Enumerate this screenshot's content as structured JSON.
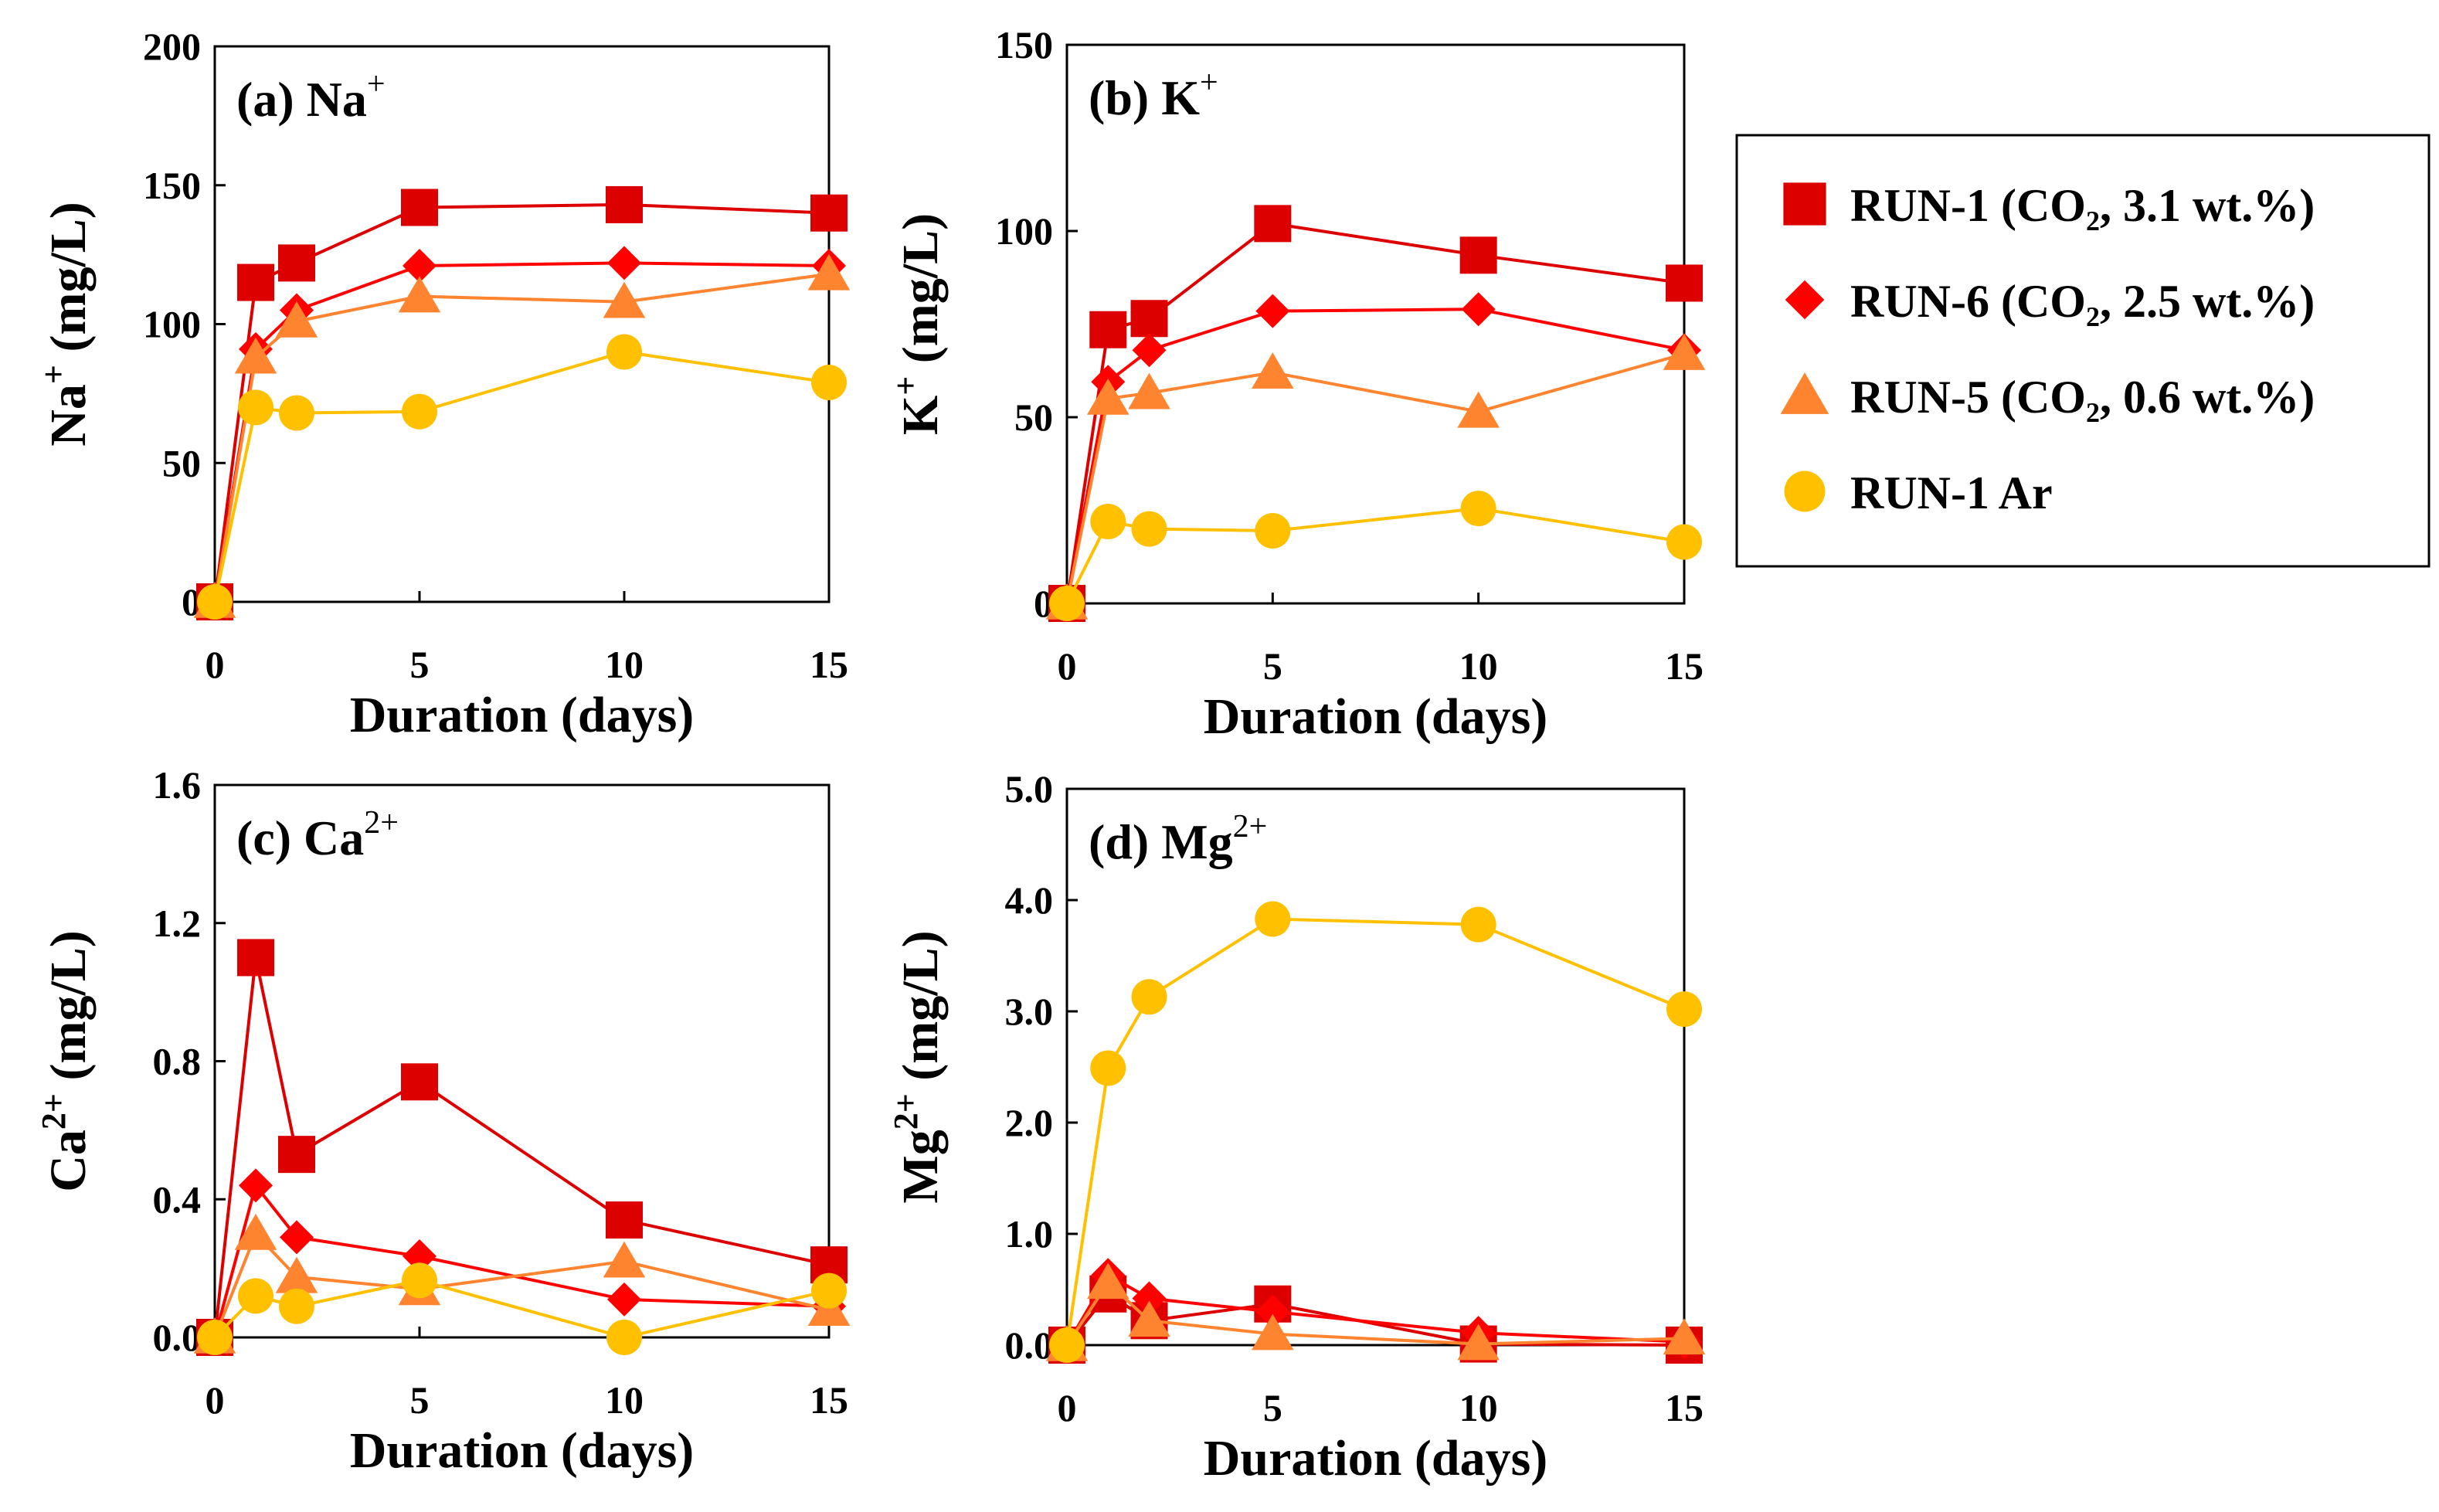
{
  "colors": {
    "RUN-1": "#DD0000",
    "RUN-6": "#FF0000",
    "RUN-5": "#FF8430",
    "RUN-1 Ar": "#FFC000"
  },
  "legend": {
    "position": "right",
    "entries": [
      {
        "name": "RUN-1 (CO₂, 3.1 wt.%)",
        "marker": "square",
        "series": "RUN-1"
      },
      {
        "name": "RUN-6 (CO₂, 2.5 wt.%)",
        "marker": "diamond",
        "series": "RUN-6"
      },
      {
        "name": "RUN-5 (CO₂, 0.6 wt.%)",
        "marker": "triangle",
        "series": "RUN-5"
      },
      {
        "name": "RUN-1 Ar",
        "marker": "circle",
        "series": "RUN-1 Ar"
      }
    ]
  },
  "chart_data": [
    {
      "type": "line",
      "panel": "a",
      "title": "(a) Na",
      "title_sup": "+",
      "ylabel": "Na",
      "ylabel_sup": "+",
      "ylabel_unit": " (mg/L)",
      "xlabel": "Duration (days)",
      "x": [
        0,
        1,
        2,
        5,
        10,
        15
      ],
      "xlim": [
        0,
        15
      ],
      "xticks": [
        "0",
        "5",
        "10",
        "15"
      ],
      "xtick_values": [
        0,
        5,
        10,
        15
      ],
      "ylim": [
        0,
        200
      ],
      "yticks": [
        "0",
        "50",
        "100",
        "150",
        "200"
      ],
      "ytick_values": [
        0,
        50,
        100,
        150,
        200
      ],
      "series": [
        {
          "name": "RUN-1",
          "marker": "square",
          "values": [
            0,
            115,
            122,
            142,
            143,
            140
          ]
        },
        {
          "name": "RUN-6",
          "marker": "diamond",
          "values": [
            0,
            91,
            105,
            121,
            122,
            121
          ]
        },
        {
          "name": "RUN-5",
          "marker": "triangle",
          "values": [
            0,
            88,
            101,
            110,
            108,
            118
          ]
        },
        {
          "name": "RUN-1 Ar",
          "marker": "circle",
          "values": [
            0,
            70,
            68,
            68.5,
            90,
            79
          ]
        }
      ]
    },
    {
      "type": "line",
      "panel": "b",
      "title": "(b) K",
      "title_sup": "+",
      "ylabel": "K",
      "ylabel_sup": "+",
      "ylabel_unit": " (mg/L)",
      "xlabel": "Duration (days)",
      "x": [
        0,
        1,
        2,
        5,
        10,
        15
      ],
      "xlim": [
        0,
        15
      ],
      "xticks": [
        "0",
        "5",
        "10",
        "15"
      ],
      "xtick_values": [
        0,
        5,
        10,
        15
      ],
      "ylim": [
        0,
        150
      ],
      "yticks": [
        "0",
        "50",
        "100",
        "150"
      ],
      "ytick_values": [
        0,
        50,
        100,
        150
      ],
      "series": [
        {
          "name": "RUN-1",
          "marker": "square",
          "values": [
            0,
            73.5,
            76.5,
            102,
            93.5,
            86
          ]
        },
        {
          "name": "RUN-6",
          "marker": "diamond",
          "values": [
            0,
            59.5,
            68,
            78.5,
            79,
            68
          ]
        },
        {
          "name": "RUN-5",
          "marker": "triangle",
          "values": [
            0,
            55,
            56.5,
            62,
            51.5,
            67
          ]
        },
        {
          "name": "RUN-1 Ar",
          "marker": "circle",
          "values": [
            0,
            22,
            20,
            19.5,
            25.5,
            16.5
          ]
        }
      ]
    },
    {
      "type": "line",
      "panel": "c",
      "title": "(c) Ca",
      "title_sup": "2+",
      "ylabel": "Ca",
      "ylabel_sup": "2+",
      "ylabel_unit": " (mg/L)",
      "xlabel": "Duration (days)",
      "x": [
        0,
        1,
        2,
        5,
        10,
        15
      ],
      "xlim": [
        0,
        15
      ],
      "xticks": [
        "0",
        "5",
        "10",
        "15"
      ],
      "xtick_values": [
        0,
        5,
        10,
        15
      ],
      "ylim": [
        0,
        1.6
      ],
      "yticks": [
        "0.0",
        "0.4",
        "0.8",
        "1.2",
        "1.6"
      ],
      "ytick_values": [
        0,
        0.4,
        0.8,
        1.2,
        1.6
      ],
      "series": [
        {
          "name": "RUN-1",
          "marker": "square",
          "values": [
            0,
            1.1,
            0.53,
            0.74,
            0.34,
            0.21
          ]
        },
        {
          "name": "RUN-6",
          "marker": "diamond",
          "values": [
            0,
            0.44,
            0.29,
            0.235,
            0.11,
            0.09
          ]
        },
        {
          "name": "RUN-5",
          "marker": "triangle",
          "values": [
            0,
            0.3,
            0.175,
            0.14,
            0.22,
            0.08
          ]
        },
        {
          "name": "RUN-1 Ar",
          "marker": "circle",
          "values": [
            0,
            0.12,
            0.09,
            0.165,
            0,
            0.135
          ]
        }
      ]
    },
    {
      "type": "line",
      "panel": "d",
      "title": "(d) Mg",
      "title_sup": "2+",
      "ylabel": "Mg",
      "ylabel_sup": "2+",
      "ylabel_unit": " (mg/L)",
      "xlabel": "Duration (days)",
      "x": [
        0,
        1,
        2,
        5,
        10,
        15
      ],
      "xlim": [
        0,
        15
      ],
      "xticks": [
        "0",
        "5",
        "10",
        "15"
      ],
      "xtick_values": [
        0,
        5,
        10,
        15
      ],
      "ylim": [
        0,
        5
      ],
      "yticks": [
        "0.0",
        "1.0",
        "2.0",
        "3.0",
        "4.0",
        "5.0"
      ],
      "ytick_values": [
        0,
        1,
        2,
        3,
        4,
        5
      ],
      "series": [
        {
          "name": "RUN-1",
          "marker": "square",
          "values": [
            0,
            0.46,
            0.22,
            0.37,
            0.01,
            0.0
          ]
        },
        {
          "name": "RUN-6",
          "marker": "diamond",
          "values": [
            0,
            0.63,
            0.42,
            0.3,
            0.11,
            0.03
          ]
        },
        {
          "name": "RUN-5",
          "marker": "triangle",
          "values": [
            0,
            0.56,
            0.22,
            0.1,
            0.01,
            0.06
          ]
        },
        {
          "name": "RUN-1 Ar",
          "marker": "circle",
          "values": [
            0,
            2.49,
            3.13,
            3.83,
            3.78,
            3.02
          ]
        }
      ]
    }
  ]
}
